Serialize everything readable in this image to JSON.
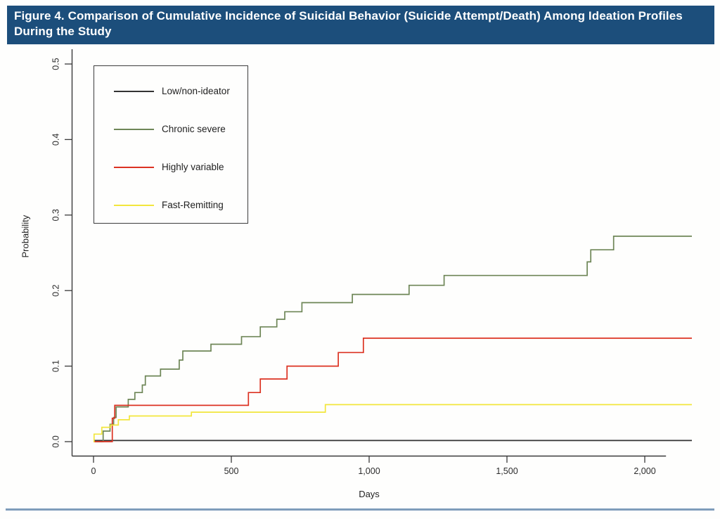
{
  "banner": {
    "title": "Figure 4. Comparison of Cumulative Incidence of Suicidal Behavior (Suicide Attempt/Death) Among Ideation Profiles During the Study",
    "bg_color": "#1c4e7b",
    "text_color": "#ffffff"
  },
  "footer": {
    "rule_color": "#7f9dbb"
  },
  "legend": {
    "items": [
      {
        "label": "Low/non-ideator"
      },
      {
        "label": "Chronic severe"
      },
      {
        "label": "Highly variable"
      },
      {
        "label": "Fast-Remitting"
      }
    ]
  },
  "chart_data": {
    "type": "line",
    "subtype": "step-function-cumulative-incidence",
    "title": "Comparison of Cumulative Incidence of Suicidal Behavior (Suicide Attempt/Death) Among Ideation Profiles",
    "xlabel": "Days",
    "ylabel": "Probability",
    "xlim": [
      0,
      2171
    ],
    "ylim": [
      0,
      0.5
    ],
    "grid": false,
    "legend_position": "upper-left-inside-box",
    "x_axis_line_end_value": 2077,
    "x_ticks": [
      {
        "value": 0,
        "label": "0"
      },
      {
        "value": 500,
        "label": "500"
      },
      {
        "value": 1000,
        "label": "1,000"
      },
      {
        "value": 1500,
        "label": "1,500"
      },
      {
        "value": 2000,
        "label": "2,000"
      }
    ],
    "y_ticks": [
      {
        "value": 0.0,
        "label": "0.0"
      },
      {
        "value": 0.1,
        "label": "0.1"
      },
      {
        "value": 0.2,
        "label": "0.2"
      },
      {
        "value": 0.3,
        "label": "0.3"
      },
      {
        "value": 0.4,
        "label": "0.4"
      },
      {
        "value": 0.5,
        "label": "0.5"
      }
    ],
    "series": [
      {
        "name": "Low/non-ideator",
        "color": "#333333",
        "end_x": 2171,
        "points": [
          [
            0,
            0.0015
          ]
        ]
      },
      {
        "name": "Chronic severe",
        "color": "#6e8657",
        "end_x": 2171,
        "points": [
          [
            0,
            0
          ],
          [
            35,
            0.014
          ],
          [
            60,
            0.023
          ],
          [
            73,
            0.032
          ],
          [
            82,
            0.046
          ],
          [
            126,
            0.056
          ],
          [
            150,
            0.065
          ],
          [
            177,
            0.075
          ],
          [
            188,
            0.087
          ],
          [
            243,
            0.096
          ],
          [
            311,
            0.108
          ],
          [
            324,
            0.12
          ],
          [
            426,
            0.129
          ],
          [
            537,
            0.139
          ],
          [
            605,
            0.152
          ],
          [
            665,
            0.162
          ],
          [
            694,
            0.172
          ],
          [
            756,
            0.184
          ],
          [
            939,
            0.195
          ],
          [
            1145,
            0.207
          ],
          [
            1272,
            0.22
          ],
          [
            1791,
            0.238
          ],
          [
            1804,
            0.254
          ],
          [
            1887,
            0.272
          ]
        ]
      },
      {
        "name": "Highly variable",
        "color": "#dc3222",
        "end_x": 2171,
        "points": [
          [
            0,
            0
          ],
          [
            68,
            0.031
          ],
          [
            77,
            0.048
          ],
          [
            562,
            0.065
          ],
          [
            605,
            0.083
          ],
          [
            702,
            0.1
          ],
          [
            888,
            0.118
          ],
          [
            979,
            0.137
          ]
        ]
      },
      {
        "name": "Fast-Remitting",
        "color": "#f2e63d",
        "end_x": 2171,
        "points": [
          [
            0,
            0
          ],
          [
            2,
            0.01
          ],
          [
            30,
            0.019
          ],
          [
            62,
            0.022
          ],
          [
            90,
            0.029
          ],
          [
            130,
            0.034
          ],
          [
            355,
            0.039
          ],
          [
            841,
            0.049
          ]
        ]
      }
    ]
  }
}
